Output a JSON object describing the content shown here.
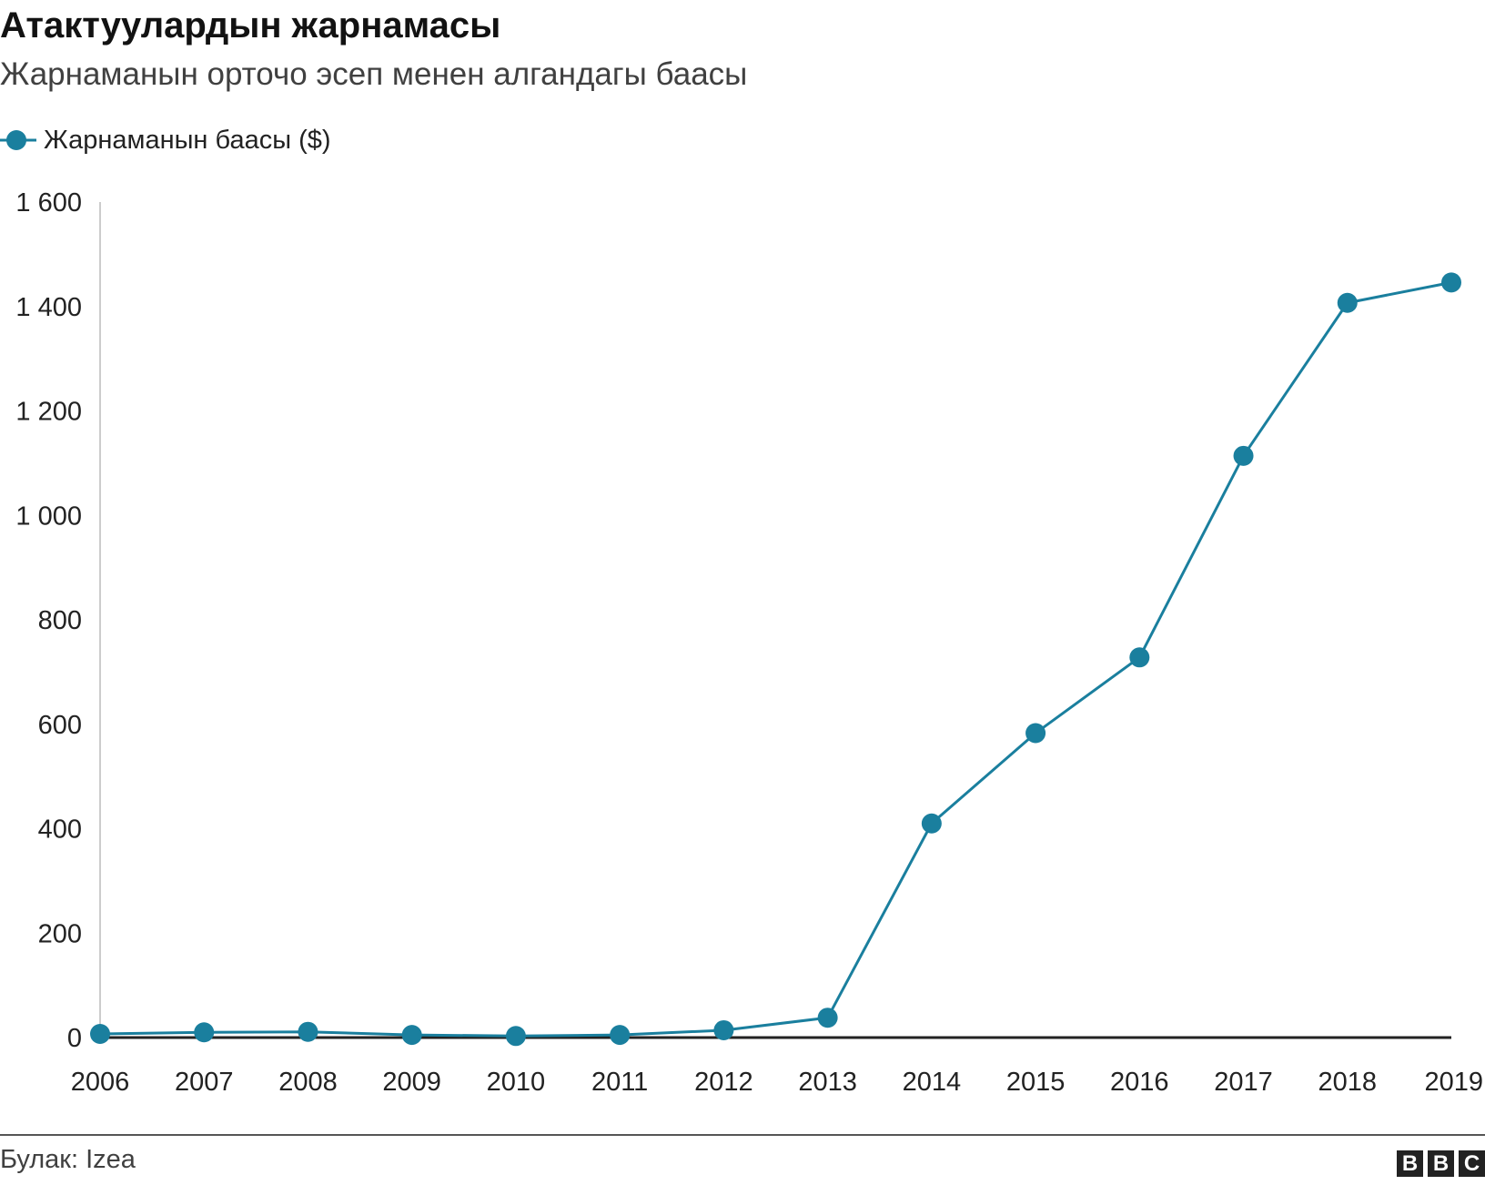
{
  "header": {
    "title": "Атактуулардын жарнамасы",
    "subtitle": "Жарнаманын орточо эсеп менен алгандагы баасы"
  },
  "colors": {
    "series": "#1a7f9e",
    "axis": "#222222",
    "gridline": "#cccccc"
  },
  "chart_data": {
    "type": "line",
    "x": [
      "2006",
      "2007",
      "2008",
      "2009",
      "2010",
      "2011",
      "2012",
      "2013",
      "2014",
      "2015",
      "2016",
      "2017",
      "2018",
      "2019"
    ],
    "series": [
      {
        "name": "Жарнаманын баасы ($)",
        "values": [
          7,
          10,
          11,
          5,
          3,
          5,
          14,
          38,
          410,
          583,
          728,
          1114,
          1407,
          1446
        ]
      }
    ],
    "y_ticks": [
      "0",
      "200",
      "400",
      "600",
      "800",
      "1 000",
      "1 200",
      "1 400",
      "1 600"
    ],
    "ylim": [
      0,
      1600
    ],
    "legend_position": "top-left",
    "grid": false
  },
  "footer": {
    "source": "Булак: Izea",
    "logo_letters": [
      "B",
      "B",
      "C"
    ]
  }
}
